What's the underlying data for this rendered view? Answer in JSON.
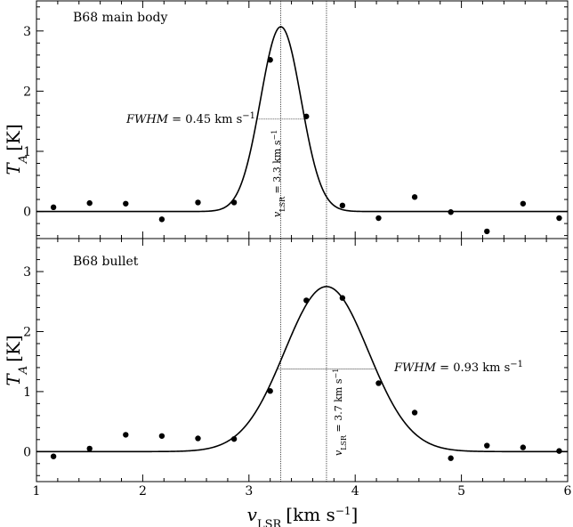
{
  "chart_data": {
    "type": "scatter",
    "x": {
      "label_main": "v",
      "label_sub": "LSR",
      "label_unit": "[km s",
      "label_sup": "−1",
      "label_close": "]",
      "range": [
        1,
        6
      ],
      "ticks": [
        1,
        2,
        3,
        4,
        5,
        6
      ],
      "tick_labels": [
        "1",
        "2",
        "3",
        "4",
        "5",
        "6"
      ]
    },
    "reference_lines": [
      3.3,
      3.73
    ],
    "panels": [
      {
        "label": "B68 main body",
        "ylabel_main": "T",
        "ylabel_sub": "A",
        "ylabel_unit": "[K]",
        "ylim": [
          -0.45,
          3.5
        ],
        "yticks": [
          0,
          1,
          2,
          3
        ],
        "ytick_labels": [
          "0",
          "1",
          "2",
          "3"
        ],
        "points": {
          "x": [
            1.16,
            1.5,
            1.84,
            2.18,
            2.52,
            2.86,
            3.2,
            3.54,
            3.88,
            4.22,
            4.56,
            4.9,
            5.24,
            5.58,
            5.92
          ],
          "y": [
            0.07,
            0.14,
            0.13,
            -0.13,
            0.15,
            0.15,
            2.52,
            1.58,
            0.1,
            -0.11,
            0.24,
            -0.01,
            -0.33,
            0.13,
            -0.11
          ]
        },
        "fit": {
          "model": "gaussian",
          "peak": 3.07,
          "center": 3.3,
          "fwhm": 0.45
        },
        "fwhm_annotation": {
          "prefix": "FWHM",
          "text": " = 0.45 km s",
          "sup": "−1"
        },
        "vlsr_annotation": {
          "v": "v",
          "sub": "LSR",
          "text": " = 3.3 km s",
          "sup": "−1"
        }
      },
      {
        "label": "B68 bullet",
        "ylabel_main": "T",
        "ylabel_sub": "A",
        "ylabel_unit": "[K]",
        "ylim": [
          -0.5,
          3.55
        ],
        "yticks": [
          0,
          1,
          2,
          3
        ],
        "ytick_labels": [
          "0",
          "1",
          "2",
          "3"
        ],
        "points": {
          "x": [
            1.16,
            1.5,
            1.84,
            2.18,
            2.52,
            2.86,
            3.2,
            3.54,
            3.88,
            4.22,
            4.56,
            4.9,
            5.24,
            5.58,
            5.92
          ],
          "y": [
            -0.08,
            0.05,
            0.28,
            0.26,
            0.22,
            0.21,
            1.01,
            2.52,
            2.56,
            1.14,
            0.65,
            -0.11,
            0.1,
            0.07,
            0.01
          ]
        },
        "fit": {
          "model": "gaussian",
          "peak": 2.75,
          "center": 3.73,
          "fwhm": 0.93
        },
        "fwhm_annotation": {
          "prefix": "FWHM",
          "text": " = 0.93 km s",
          "sup": "−1"
        },
        "vlsr_annotation": {
          "v": "v",
          "sub": "LSR",
          "text": " = 3.7 km s",
          "sup": "−1"
        }
      }
    ]
  }
}
